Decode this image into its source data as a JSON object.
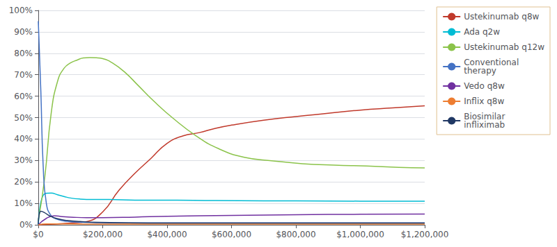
{
  "chart_data": {
    "type": "line",
    "series": [
      {
        "name": "Ustekinumab q8w",
        "color": "#c0392b",
        "x": [
          0,
          50000,
          100000,
          150000,
          200000,
          250000,
          300000,
          350000,
          400000,
          450000,
          500000,
          550000,
          600000,
          700000,
          800000,
          900000,
          1000000,
          1100000,
          1200000
        ],
        "values": [
          0.0,
          0.003,
          0.008,
          0.015,
          0.06,
          0.16,
          0.24,
          0.31,
          0.38,
          0.415,
          0.43,
          0.45,
          0.465,
          0.488,
          0.505,
          0.52,
          0.535,
          0.545,
          0.555
        ]
      },
      {
        "name": "Ada q2w",
        "color": "#00bcd4",
        "x": [
          0,
          20000,
          40000,
          60000,
          80000,
          100000,
          130000,
          170000,
          220000,
          300000,
          400000,
          550000,
          700000,
          900000,
          1100000,
          1200000
        ],
        "values": [
          0.0,
          0.145,
          0.148,
          0.14,
          0.132,
          0.125,
          0.12,
          0.118,
          0.118,
          0.115,
          0.115,
          0.113,
          0.112,
          0.111,
          0.11,
          0.11
        ]
      },
      {
        "name": "Ustekinumab q12w",
        "color": "#8bc34a",
        "x": [
          0,
          20000,
          40000,
          60000,
          80000,
          100000,
          120000,
          140000,
          160000,
          180000,
          200000,
          230000,
          270000,
          310000,
          360000,
          420000,
          490000,
          560000,
          640000,
          730000,
          820000,
          920000,
          1020000,
          1120000,
          1200000
        ],
        "values": [
          0.02,
          0.22,
          0.52,
          0.67,
          0.73,
          0.755,
          0.768,
          0.778,
          0.78,
          0.779,
          0.775,
          0.755,
          0.71,
          0.65,
          0.575,
          0.495,
          0.415,
          0.355,
          0.315,
          0.298,
          0.285,
          0.278,
          0.274,
          0.268,
          0.265
        ]
      },
      {
        "name": "Conventional\ntherapy",
        "color": "#4472c4",
        "x": [
          0,
          8000,
          15000,
          25000,
          40000,
          60000,
          90000,
          130000,
          180000,
          250000,
          350000,
          500000,
          700000,
          1000000,
          1200000
        ],
        "values": [
          0.95,
          0.62,
          0.28,
          0.1,
          0.042,
          0.025,
          0.016,
          0.012,
          0.01,
          0.009,
          0.009,
          0.009,
          0.009,
          0.009,
          0.009
        ]
      },
      {
        "name": "Vedo q8w",
        "color": "#7030a0",
        "x": [
          0,
          25000,
          50000,
          75000,
          100000,
          150000,
          200000,
          300000,
          400000,
          600000,
          800000,
          1000000,
          1200000
        ],
        "values": [
          0.0,
          0.03,
          0.042,
          0.038,
          0.036,
          0.033,
          0.033,
          0.036,
          0.04,
          0.044,
          0.047,
          0.049,
          0.05
        ]
      },
      {
        "name": "Inflix q8w",
        "color": "#ed7d31",
        "x": [
          0,
          25000,
          50000,
          100000,
          200000,
          400000,
          600000,
          800000,
          1000000,
          1200000
        ],
        "values": [
          0.0,
          0.004,
          0.004,
          0.004,
          0.003,
          0.003,
          0.003,
          0.003,
          0.003,
          0.003
        ]
      },
      {
        "name": "Biosimilar\ninfliximab",
        "color": "#203864",
        "x": [
          0,
          8000,
          18000,
          35000,
          60000,
          90000,
          130000,
          190000,
          280000,
          400000,
          600000,
          900000,
          1200000
        ],
        "values": [
          0.003,
          0.063,
          0.058,
          0.042,
          0.028,
          0.02,
          0.015,
          0.011,
          0.009,
          0.008,
          0.008,
          0.008,
          0.008
        ]
      }
    ],
    "xlim": [
      0,
      1200000
    ],
    "xticks": [
      {
        "value": 0,
        "label": "$0"
      },
      {
        "value": 200000,
        "label": "$200,000"
      },
      {
        "value": 400000,
        "label": "$400,000"
      },
      {
        "value": 600000,
        "label": "$600,000"
      },
      {
        "value": 800000,
        "label": "$800,000"
      },
      {
        "value": 1000000,
        "label": "$1,000,000"
      },
      {
        "value": 1200000,
        "label": "$1,200,000"
      }
    ],
    "ylim": [
      0.0,
      1.0
    ],
    "yticks": [
      {
        "value": 0.0,
        "label": "0%"
      },
      {
        "value": 0.1,
        "label": "10%"
      },
      {
        "value": 0.2,
        "label": "20%"
      },
      {
        "value": 0.3,
        "label": "30%"
      },
      {
        "value": 0.4,
        "label": "40%"
      },
      {
        "value": 0.5,
        "label": "50%"
      },
      {
        "value": 0.6,
        "label": "60%"
      },
      {
        "value": 0.7,
        "label": "70%"
      },
      {
        "value": 0.8,
        "label": "80%"
      },
      {
        "value": 0.9,
        "label": "90%"
      },
      {
        "value": 1.0,
        "label": "100%"
      }
    ],
    "grid": "y",
    "legend": "upper right"
  }
}
